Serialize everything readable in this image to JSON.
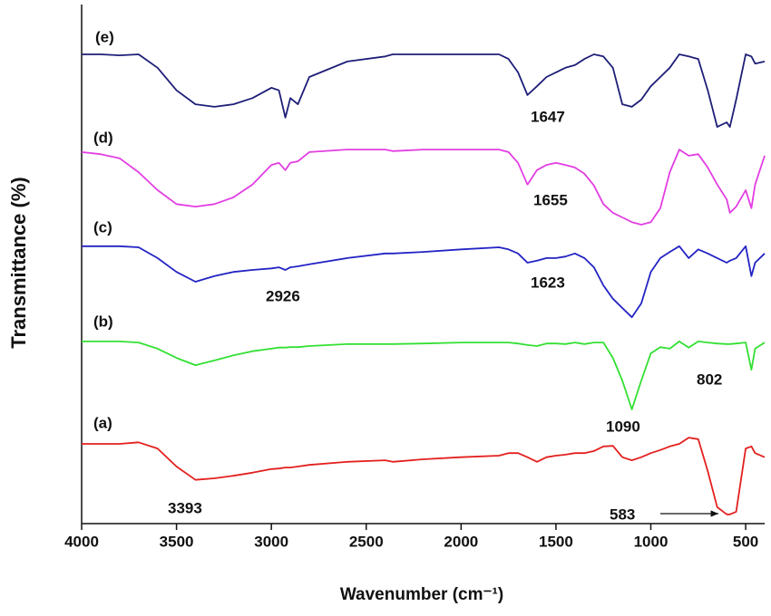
{
  "chart_data": {
    "type": "line",
    "xlabel": "Wavenumber (cm⁻¹)",
    "ylabel": "Transmittance (%)",
    "xlim": [
      4000,
      400
    ],
    "xticks": [
      4000,
      3500,
      3000,
      2500,
      2000,
      1500,
      1000,
      500
    ],
    "ylim": [
      0,
      100
    ],
    "x": [
      4000,
      3900,
      3800,
      3700,
      3600,
      3500,
      3400,
      3300,
      3200,
      3100,
      3000,
      2960,
      2926,
      2900,
      2860,
      2800,
      2600,
      2400,
      2360,
      2200,
      2000,
      1800,
      1750,
      1700,
      1650,
      1600,
      1550,
      1500,
      1450,
      1400,
      1350,
      1300,
      1250,
      1200,
      1150,
      1100,
      1050,
      1000,
      950,
      900,
      850,
      800,
      750,
      700,
      650,
      600,
      583,
      550,
      500,
      470,
      450,
      400
    ],
    "series": [
      {
        "name": "(a)",
        "color": "#e3201e",
        "values": [
          15.5,
          15.5,
          15.5,
          15.8,
          14.6,
          11.1,
          8.5,
          8.8,
          9.3,
          9.9,
          10.6,
          10.7,
          10.9,
          10.9,
          11.1,
          11.4,
          12.0,
          12.3,
          12.0,
          12.5,
          12.9,
          13.2,
          13.7,
          13.7,
          12.9,
          12.0,
          12.9,
          13.2,
          13.4,
          13.7,
          13.7,
          14.1,
          15.0,
          15.1,
          12.9,
          12.3,
          12.9,
          13.7,
          14.3,
          15.0,
          15.5,
          16.7,
          16.4,
          10.2,
          3.2,
          1.8,
          1.8,
          2.3,
          14.6,
          15.0,
          13.7,
          12.9
        ]
      },
      {
        "name": "(b)",
        "color": "#33e033",
        "values": [
          35.4,
          35.4,
          35.4,
          35.2,
          34.0,
          32.2,
          30.8,
          31.7,
          32.7,
          33.5,
          34.0,
          34.2,
          34.2,
          34.3,
          34.3,
          34.5,
          34.9,
          34.9,
          34.9,
          35.0,
          35.2,
          35.2,
          35.2,
          35.0,
          34.7,
          34.5,
          35.0,
          35.0,
          34.9,
          35.2,
          34.9,
          35.2,
          35.2,
          32.2,
          27.8,
          22.2,
          27.8,
          33.1,
          34.3,
          34.0,
          35.4,
          34.2,
          35.4,
          35.2,
          35.0,
          34.9,
          34.9,
          35.0,
          35.2,
          29.9,
          34.0,
          35.2
        ]
      },
      {
        "name": "(c)",
        "color": "#2323c4",
        "values": [
          53.9,
          53.9,
          53.9,
          53.7,
          51.6,
          48.9,
          47.0,
          48.1,
          48.9,
          49.3,
          49.6,
          49.8,
          49.3,
          49.8,
          50.0,
          50.4,
          51.6,
          52.5,
          52.5,
          52.8,
          53.3,
          53.7,
          53.3,
          52.5,
          50.7,
          51.1,
          51.6,
          51.6,
          51.9,
          52.5,
          51.6,
          49.8,
          46.3,
          43.7,
          41.9,
          40.1,
          42.8,
          48.9,
          51.6,
          52.8,
          53.9,
          51.6,
          53.3,
          52.5,
          51.6,
          50.7,
          51.1,
          51.6,
          53.9,
          48.1,
          50.7,
          52.5
        ]
      },
      {
        "name": "(d)",
        "color": "#e23ee2",
        "values": [
          72.2,
          71.8,
          71.0,
          68.3,
          64.8,
          62.1,
          61.6,
          62.1,
          63.4,
          65.9,
          69.7,
          70.1,
          68.7,
          70.1,
          70.4,
          72.2,
          72.7,
          72.7,
          72.4,
          72.7,
          72.7,
          72.7,
          72.2,
          70.1,
          65.9,
          68.7,
          69.7,
          70.1,
          69.7,
          69.2,
          68.0,
          65.7,
          62.1,
          60.4,
          59.5,
          58.6,
          58.1,
          58.6,
          61.3,
          68.3,
          72.7,
          71.5,
          71.8,
          69.2,
          65.9,
          63.0,
          60.4,
          61.6,
          64.8,
          61.3,
          65.9,
          71.5
        ]
      },
      {
        "name": "(e)",
        "color": "#1e1e78",
        "values": [
          91.2,
          91.2,
          91.0,
          91.2,
          88.6,
          84.2,
          81.5,
          81.0,
          81.5,
          82.7,
          84.7,
          84.2,
          78.9,
          82.7,
          81.5,
          86.8,
          89.8,
          90.8,
          91.2,
          91.2,
          91.2,
          91.2,
          90.3,
          87.7,
          83.3,
          85.0,
          86.8,
          87.7,
          88.6,
          89.1,
          90.3,
          91.2,
          90.8,
          88.6,
          81.5,
          81.0,
          82.4,
          85.0,
          86.8,
          88.6,
          91.2,
          90.8,
          90.3,
          84.2,
          77.1,
          78.0,
          77.1,
          82.4,
          91.2,
          90.8,
          89.4,
          89.8
        ]
      }
    ],
    "annotations": [
      "1647",
      "1655",
      "2926",
      "1623",
      "1090",
      "802",
      "3393",
      "583"
    ]
  }
}
